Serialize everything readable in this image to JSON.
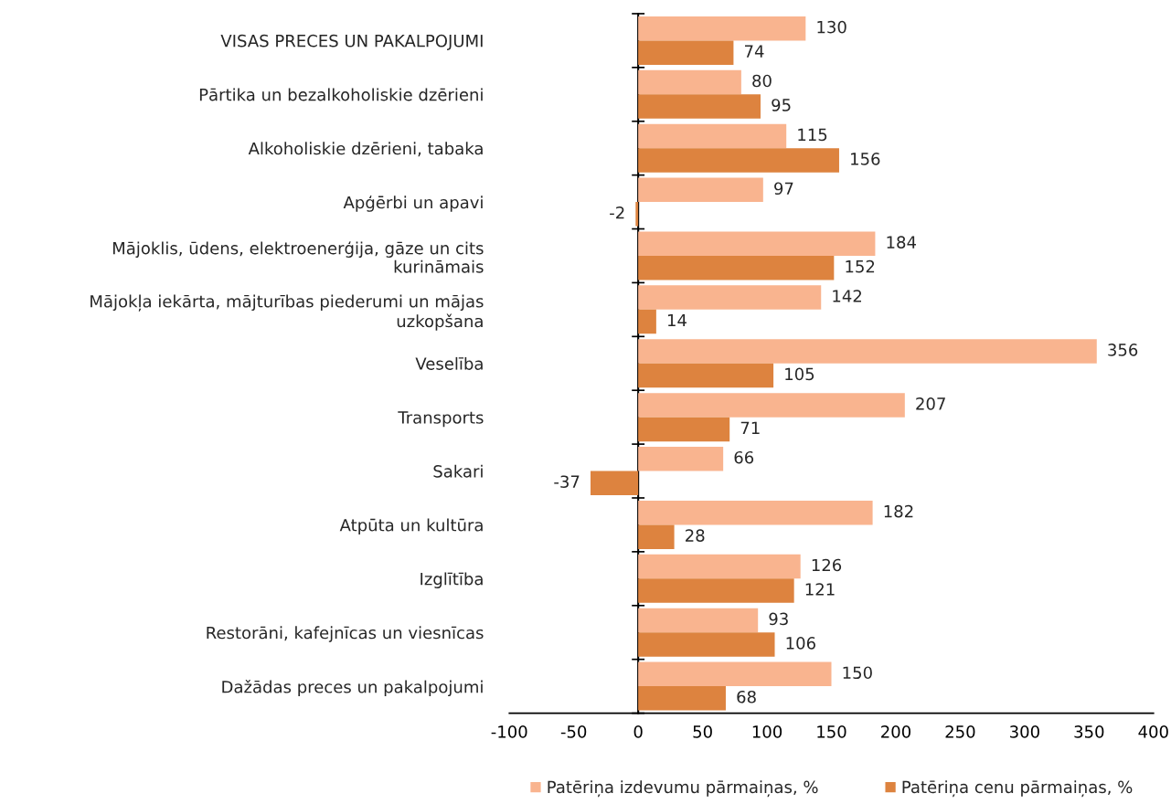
{
  "chart_data": {
    "type": "bar",
    "orientation": "horizontal",
    "categories": [
      "VISAS PRECES UN PAKALPOJUMI",
      "Pārtika un bezalkoholiskie dzērieni",
      "Alkoholiskie dzērieni, tabaka",
      "Apģērbi un apavi",
      "Mājoklis, ūdens, elektroenerģija, gāze un cits\nkurināmais",
      "Mājokļa iekārta, mājturības piederumi un mājas\nuzkopšana",
      "Veselība",
      "Transports",
      "Sakari",
      "Atpūta un kultūra",
      "Izglītība",
      "Restorāni, kafejnīcas un viesnīcas",
      "Dažādas preces un pakalpojumi"
    ],
    "series": [
      {
        "name": "Patēriņa izdevumu pārmaiņas, %",
        "color": "#f9b48f",
        "values": [
          130,
          80,
          115,
          97,
          184,
          142,
          356,
          207,
          66,
          182,
          126,
          93,
          150
        ]
      },
      {
        "name": "Patēriņa cenu pārmaiņas, %",
        "color": "#dd833f",
        "values": [
          74,
          95,
          156,
          -2,
          152,
          14,
          105,
          71,
          -37,
          28,
          121,
          106,
          68
        ]
      }
    ],
    "xlim": [
      -100,
      400
    ],
    "xticks": [
      -100,
      -50,
      0,
      50,
      100,
      150,
      200,
      250,
      300,
      350,
      400
    ],
    "data_labels": true,
    "legend": "bottom"
  }
}
